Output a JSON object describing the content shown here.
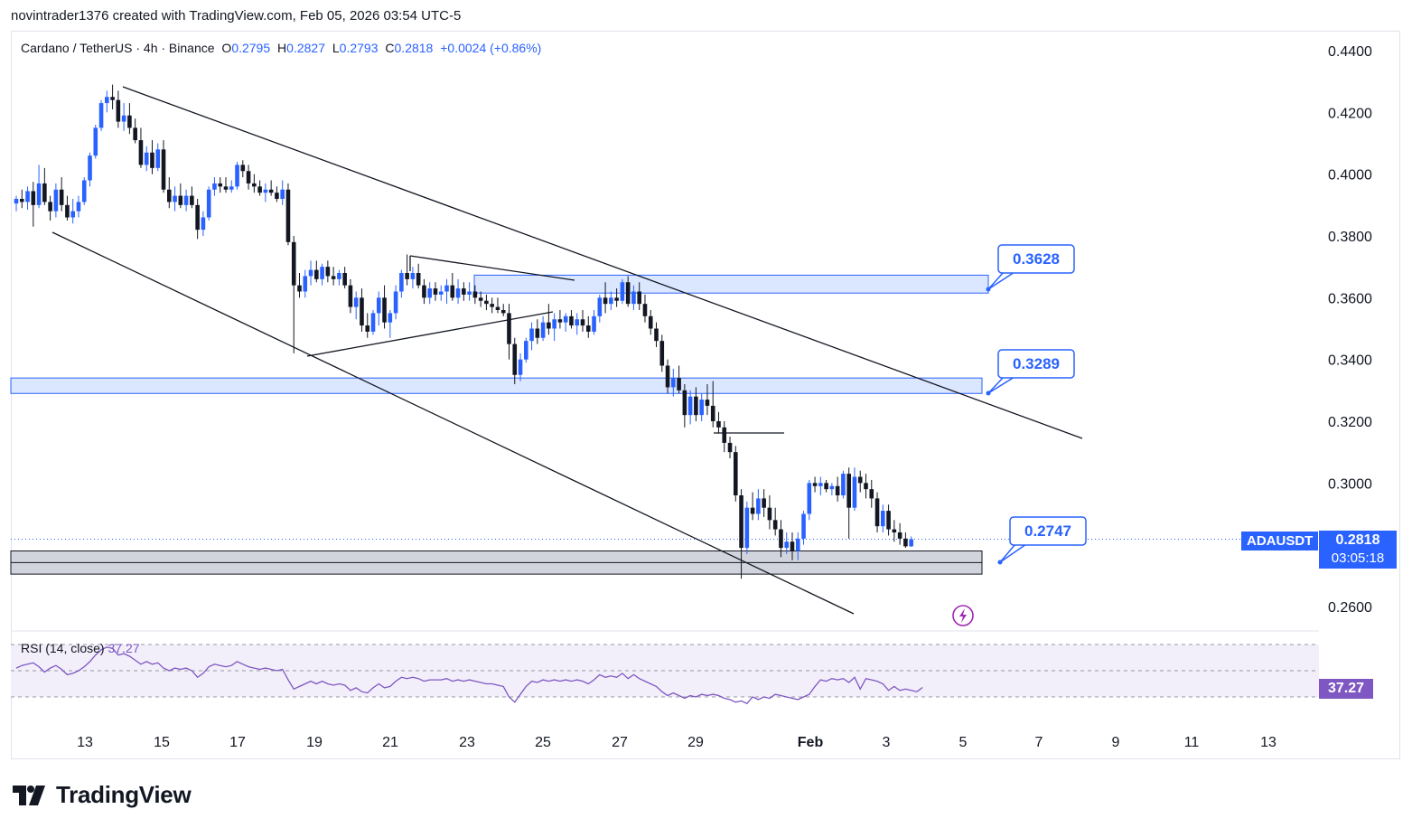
{
  "header": {
    "caption": "novintrader1376 created with TradingView.com, Feb 05, 2026 03:54 UTC-5"
  },
  "legend": {
    "symbol": "Cardano / TetherUS · 4h · Binance",
    "open_label": "O",
    "open": "0.2795",
    "high_label": "H",
    "high": "0.2827",
    "low_label": "L",
    "low": "0.2793",
    "close_label": "C",
    "close": "0.2818",
    "change": "+0.0024 (+0.86%)"
  },
  "rsi_legend": {
    "label": "RSI (14, close)",
    "value": "37.27"
  },
  "price_scale": {
    "symbol_badge": "ADAUSDT",
    "last_price": "0.2818",
    "countdown": "03:05:18",
    "rsi_badge": "37.27"
  },
  "footer": {
    "brand": "TradingView"
  },
  "colors": {
    "up": "#2962ff",
    "down": "#131722",
    "zone_blue": "#dbe6ff",
    "zone_blue_border": "#2962ff",
    "zone_grey": "#d1d4dc",
    "rsi_line": "#7e57c2",
    "rsi_band": "#f3effa",
    "callout_text": "#2962ff"
  },
  "chart_data": {
    "type": "candlestick",
    "timeframe": "4h",
    "ylim": [
      0.254,
      0.446
    ],
    "y_ticks": [
      "0.4400",
      "0.4200",
      "0.4000",
      "0.3800",
      "0.3600",
      "0.3400",
      "0.3200",
      "0.3000",
      "0.2600"
    ],
    "x_ticks": [
      "13",
      "15",
      "17",
      "19",
      "21",
      "23",
      "25",
      "27",
      "29",
      "Feb",
      "3",
      "5",
      "7",
      "9",
      "11",
      "13"
    ],
    "candles": [
      {
        "o": 0.3905,
        "h": 0.393,
        "l": 0.388,
        "c": 0.392
      },
      {
        "o": 0.392,
        "h": 0.395,
        "l": 0.389,
        "c": 0.391
      },
      {
        "o": 0.391,
        "h": 0.396,
        "l": 0.3885,
        "c": 0.3945
      },
      {
        "o": 0.3945,
        "h": 0.3975,
        "l": 0.383,
        "c": 0.39
      },
      {
        "o": 0.39,
        "h": 0.403,
        "l": 0.389,
        "c": 0.397
      },
      {
        "o": 0.397,
        "h": 0.402,
        "l": 0.39,
        "c": 0.391
      },
      {
        "o": 0.391,
        "h": 0.393,
        "l": 0.385,
        "c": 0.388
      },
      {
        "o": 0.388,
        "h": 0.397,
        "l": 0.386,
        "c": 0.395
      },
      {
        "o": 0.395,
        "h": 0.399,
        "l": 0.388,
        "c": 0.39
      },
      {
        "o": 0.39,
        "h": 0.393,
        "l": 0.385,
        "c": 0.386
      },
      {
        "o": 0.386,
        "h": 0.392,
        "l": 0.384,
        "c": 0.388
      },
      {
        "o": 0.388,
        "h": 0.393,
        "l": 0.386,
        "c": 0.391
      },
      {
        "o": 0.391,
        "h": 0.399,
        "l": 0.39,
        "c": 0.398
      },
      {
        "o": 0.398,
        "h": 0.407,
        "l": 0.396,
        "c": 0.406
      },
      {
        "o": 0.406,
        "h": 0.416,
        "l": 0.405,
        "c": 0.415
      },
      {
        "o": 0.415,
        "h": 0.424,
        "l": 0.414,
        "c": 0.423
      },
      {
        "o": 0.423,
        "h": 0.427,
        "l": 0.42,
        "c": 0.425
      },
      {
        "o": 0.425,
        "h": 0.429,
        "l": 0.421,
        "c": 0.424
      },
      {
        "o": 0.424,
        "h": 0.427,
        "l": 0.415,
        "c": 0.417
      },
      {
        "o": 0.417,
        "h": 0.423,
        "l": 0.414,
        "c": 0.419
      },
      {
        "o": 0.419,
        "h": 0.423,
        "l": 0.413,
        "c": 0.415
      },
      {
        "o": 0.415,
        "h": 0.418,
        "l": 0.41,
        "c": 0.411
      },
      {
        "o": 0.411,
        "h": 0.415,
        "l": 0.402,
        "c": 0.403
      },
      {
        "o": 0.403,
        "h": 0.409,
        "l": 0.401,
        "c": 0.407
      },
      {
        "o": 0.407,
        "h": 0.411,
        "l": 0.4,
        "c": 0.402
      },
      {
        "o": 0.402,
        "h": 0.41,
        "l": 0.401,
        "c": 0.408
      },
      {
        "o": 0.408,
        "h": 0.411,
        "l": 0.394,
        "c": 0.395
      },
      {
        "o": 0.395,
        "h": 0.399,
        "l": 0.389,
        "c": 0.391
      },
      {
        "o": 0.391,
        "h": 0.396,
        "l": 0.388,
        "c": 0.393
      },
      {
        "o": 0.393,
        "h": 0.397,
        "l": 0.389,
        "c": 0.39
      },
      {
        "o": 0.39,
        "h": 0.395,
        "l": 0.388,
        "c": 0.393
      },
      {
        "o": 0.393,
        "h": 0.396,
        "l": 0.389,
        "c": 0.39
      },
      {
        "o": 0.39,
        "h": 0.392,
        "l": 0.379,
        "c": 0.382
      },
      {
        "o": 0.382,
        "h": 0.388,
        "l": 0.38,
        "c": 0.386
      },
      {
        "o": 0.386,
        "h": 0.396,
        "l": 0.385,
        "c": 0.395
      },
      {
        "o": 0.395,
        "h": 0.399,
        "l": 0.393,
        "c": 0.397
      },
      {
        "o": 0.397,
        "h": 0.399,
        "l": 0.394,
        "c": 0.396
      },
      {
        "o": 0.396,
        "h": 0.399,
        "l": 0.394,
        "c": 0.395
      },
      {
        "o": 0.395,
        "h": 0.398,
        "l": 0.394,
        "c": 0.396
      },
      {
        "o": 0.396,
        "h": 0.404,
        "l": 0.395,
        "c": 0.403
      },
      {
        "o": 0.403,
        "h": 0.4045,
        "l": 0.399,
        "c": 0.401
      },
      {
        "o": 0.401,
        "h": 0.403,
        "l": 0.395,
        "c": 0.397
      },
      {
        "o": 0.397,
        "h": 0.4,
        "l": 0.394,
        "c": 0.396
      },
      {
        "o": 0.396,
        "h": 0.398,
        "l": 0.393,
        "c": 0.394
      },
      {
        "o": 0.394,
        "h": 0.397,
        "l": 0.391,
        "c": 0.395
      },
      {
        "o": 0.395,
        "h": 0.398,
        "l": 0.393,
        "c": 0.394
      },
      {
        "o": 0.394,
        "h": 0.396,
        "l": 0.391,
        "c": 0.392
      },
      {
        "o": 0.392,
        "h": 0.398,
        "l": 0.39,
        "c": 0.395
      },
      {
        "o": 0.395,
        "h": 0.397,
        "l": 0.377,
        "c": 0.378
      },
      {
        "o": 0.378,
        "h": 0.38,
        "l": 0.342,
        "c": 0.364
      },
      {
        "o": 0.364,
        "h": 0.368,
        "l": 0.36,
        "c": 0.362
      },
      {
        "o": 0.362,
        "h": 0.369,
        "l": 0.36,
        "c": 0.367
      },
      {
        "o": 0.367,
        "h": 0.372,
        "l": 0.364,
        "c": 0.369
      },
      {
        "o": 0.369,
        "h": 0.372,
        "l": 0.365,
        "c": 0.366
      },
      {
        "o": 0.366,
        "h": 0.371,
        "l": 0.364,
        "c": 0.37
      },
      {
        "o": 0.37,
        "h": 0.372,
        "l": 0.365,
        "c": 0.367
      },
      {
        "o": 0.367,
        "h": 0.37,
        "l": 0.364,
        "c": 0.366
      },
      {
        "o": 0.366,
        "h": 0.369,
        "l": 0.364,
        "c": 0.368
      },
      {
        "o": 0.368,
        "h": 0.37,
        "l": 0.363,
        "c": 0.364
      },
      {
        "o": 0.364,
        "h": 0.366,
        "l": 0.355,
        "c": 0.357
      },
      {
        "o": 0.357,
        "h": 0.362,
        "l": 0.353,
        "c": 0.36
      },
      {
        "o": 0.36,
        "h": 0.363,
        "l": 0.349,
        "c": 0.351
      },
      {
        "o": 0.351,
        "h": 0.355,
        "l": 0.347,
        "c": 0.349
      },
      {
        "o": 0.349,
        "h": 0.356,
        "l": 0.348,
        "c": 0.355
      },
      {
        "o": 0.355,
        "h": 0.362,
        "l": 0.351,
        "c": 0.36
      },
      {
        "o": 0.36,
        "h": 0.364,
        "l": 0.35,
        "c": 0.352
      },
      {
        "o": 0.352,
        "h": 0.356,
        "l": 0.347,
        "c": 0.355
      },
      {
        "o": 0.355,
        "h": 0.364,
        "l": 0.353,
        "c": 0.362
      },
      {
        "o": 0.362,
        "h": 0.369,
        "l": 0.36,
        "c": 0.368
      },
      {
        "o": 0.368,
        "h": 0.374,
        "l": 0.364,
        "c": 0.366
      },
      {
        "o": 0.366,
        "h": 0.37,
        "l": 0.363,
        "c": 0.368
      },
      {
        "o": 0.368,
        "h": 0.371,
        "l": 0.363,
        "c": 0.364
      },
      {
        "o": 0.364,
        "h": 0.366,
        "l": 0.358,
        "c": 0.36
      },
      {
        "o": 0.36,
        "h": 0.365,
        "l": 0.358,
        "c": 0.363
      },
      {
        "o": 0.363,
        "h": 0.365,
        "l": 0.359,
        "c": 0.361
      },
      {
        "o": 0.361,
        "h": 0.364,
        "l": 0.359,
        "c": 0.362
      },
      {
        "o": 0.362,
        "h": 0.366,
        "l": 0.358,
        "c": 0.364
      },
      {
        "o": 0.364,
        "h": 0.368,
        "l": 0.359,
        "c": 0.36
      },
      {
        "o": 0.36,
        "h": 0.366,
        "l": 0.358,
        "c": 0.363
      },
      {
        "o": 0.363,
        "h": 0.365,
        "l": 0.359,
        "c": 0.361
      },
      {
        "o": 0.361,
        "h": 0.365,
        "l": 0.359,
        "c": 0.362
      },
      {
        "o": 0.362,
        "h": 0.364,
        "l": 0.358,
        "c": 0.36
      },
      {
        "o": 0.36,
        "h": 0.362,
        "l": 0.357,
        "c": 0.359
      },
      {
        "o": 0.359,
        "h": 0.361,
        "l": 0.356,
        "c": 0.358
      },
      {
        "o": 0.358,
        "h": 0.36,
        "l": 0.355,
        "c": 0.357
      },
      {
        "o": 0.357,
        "h": 0.36,
        "l": 0.355,
        "c": 0.356
      },
      {
        "o": 0.356,
        "h": 0.358,
        "l": 0.354,
        "c": 0.355
      },
      {
        "o": 0.355,
        "h": 0.358,
        "l": 0.34,
        "c": 0.345
      },
      {
        "o": 0.345,
        "h": 0.347,
        "l": 0.332,
        "c": 0.335
      },
      {
        "o": 0.335,
        "h": 0.342,
        "l": 0.333,
        "c": 0.34
      },
      {
        "o": 0.34,
        "h": 0.347,
        "l": 0.339,
        "c": 0.346
      },
      {
        "o": 0.346,
        "h": 0.352,
        "l": 0.343,
        "c": 0.35
      },
      {
        "o": 0.35,
        "h": 0.353,
        "l": 0.345,
        "c": 0.347
      },
      {
        "o": 0.347,
        "h": 0.354,
        "l": 0.346,
        "c": 0.352
      },
      {
        "o": 0.352,
        "h": 0.358,
        "l": 0.348,
        "c": 0.35
      },
      {
        "o": 0.35,
        "h": 0.355,
        "l": 0.346,
        "c": 0.353
      },
      {
        "o": 0.353,
        "h": 0.356,
        "l": 0.35,
        "c": 0.352
      },
      {
        "o": 0.352,
        "h": 0.355,
        "l": 0.349,
        "c": 0.354
      },
      {
        "o": 0.354,
        "h": 0.356,
        "l": 0.35,
        "c": 0.351
      },
      {
        "o": 0.351,
        "h": 0.355,
        "l": 0.348,
        "c": 0.353
      },
      {
        "o": 0.353,
        "h": 0.356,
        "l": 0.349,
        "c": 0.351
      },
      {
        "o": 0.351,
        "h": 0.354,
        "l": 0.347,
        "c": 0.349
      },
      {
        "o": 0.349,
        "h": 0.356,
        "l": 0.348,
        "c": 0.354
      },
      {
        "o": 0.354,
        "h": 0.361,
        "l": 0.352,
        "c": 0.36
      },
      {
        "o": 0.36,
        "h": 0.365,
        "l": 0.355,
        "c": 0.358
      },
      {
        "o": 0.358,
        "h": 0.362,
        "l": 0.356,
        "c": 0.36
      },
      {
        "o": 0.36,
        "h": 0.363,
        "l": 0.357,
        "c": 0.359
      },
      {
        "o": 0.359,
        "h": 0.366,
        "l": 0.358,
        "c": 0.365
      },
      {
        "o": 0.365,
        "h": 0.367,
        "l": 0.357,
        "c": 0.358
      },
      {
        "o": 0.358,
        "h": 0.364,
        "l": 0.356,
        "c": 0.362
      },
      {
        "o": 0.362,
        "h": 0.365,
        "l": 0.356,
        "c": 0.358
      },
      {
        "o": 0.358,
        "h": 0.361,
        "l": 0.352,
        "c": 0.354
      },
      {
        "o": 0.354,
        "h": 0.356,
        "l": 0.348,
        "c": 0.35
      },
      {
        "o": 0.35,
        "h": 0.352,
        "l": 0.344,
        "c": 0.346
      },
      {
        "o": 0.346,
        "h": 0.348,
        "l": 0.336,
        "c": 0.338
      },
      {
        "o": 0.338,
        "h": 0.34,
        "l": 0.329,
        "c": 0.331
      },
      {
        "o": 0.331,
        "h": 0.337,
        "l": 0.328,
        "c": 0.334
      },
      {
        "o": 0.334,
        "h": 0.338,
        "l": 0.329,
        "c": 0.33
      },
      {
        "o": 0.33,
        "h": 0.332,
        "l": 0.318,
        "c": 0.322
      },
      {
        "o": 0.322,
        "h": 0.33,
        "l": 0.319,
        "c": 0.328
      },
      {
        "o": 0.328,
        "h": 0.331,
        "l": 0.32,
        "c": 0.322
      },
      {
        "o": 0.322,
        "h": 0.329,
        "l": 0.32,
        "c": 0.327
      },
      {
        "o": 0.327,
        "h": 0.332,
        "l": 0.322,
        "c": 0.325
      },
      {
        "o": 0.325,
        "h": 0.333,
        "l": 0.318,
        "c": 0.32
      },
      {
        "o": 0.32,
        "h": 0.323,
        "l": 0.316,
        "c": 0.318
      },
      {
        "o": 0.318,
        "h": 0.32,
        "l": 0.31,
        "c": 0.313
      },
      {
        "o": 0.313,
        "h": 0.315,
        "l": 0.308,
        "c": 0.31
      },
      {
        "o": 0.31,
        "h": 0.312,
        "l": 0.294,
        "c": 0.296
      },
      {
        "o": 0.296,
        "h": 0.298,
        "l": 0.269,
        "c": 0.279
      },
      {
        "o": 0.279,
        "h": 0.294,
        "l": 0.277,
        "c": 0.292
      },
      {
        "o": 0.292,
        "h": 0.297,
        "l": 0.288,
        "c": 0.29
      },
      {
        "o": 0.29,
        "h": 0.298,
        "l": 0.288,
        "c": 0.295
      },
      {
        "o": 0.295,
        "h": 0.298,
        "l": 0.289,
        "c": 0.292
      },
      {
        "o": 0.292,
        "h": 0.296,
        "l": 0.285,
        "c": 0.288
      },
      {
        "o": 0.288,
        "h": 0.292,
        "l": 0.283,
        "c": 0.285
      },
      {
        "o": 0.285,
        "h": 0.288,
        "l": 0.276,
        "c": 0.279
      },
      {
        "o": 0.279,
        "h": 0.284,
        "l": 0.277,
        "c": 0.281
      },
      {
        "o": 0.281,
        "h": 0.284,
        "l": 0.275,
        "c": 0.278
      },
      {
        "o": 0.278,
        "h": 0.284,
        "l": 0.275,
        "c": 0.282
      },
      {
        "o": 0.282,
        "h": 0.291,
        "l": 0.28,
        "c": 0.29
      },
      {
        "o": 0.29,
        "h": 0.301,
        "l": 0.288,
        "c": 0.3
      },
      {
        "o": 0.3,
        "h": 0.302,
        "l": 0.297,
        "c": 0.299
      },
      {
        "o": 0.299,
        "h": 0.302,
        "l": 0.296,
        "c": 0.3
      },
      {
        "o": 0.3,
        "h": 0.301,
        "l": 0.297,
        "c": 0.298
      },
      {
        "o": 0.298,
        "h": 0.3,
        "l": 0.296,
        "c": 0.299
      },
      {
        "o": 0.299,
        "h": 0.302,
        "l": 0.294,
        "c": 0.296
      },
      {
        "o": 0.296,
        "h": 0.304,
        "l": 0.295,
        "c": 0.303
      },
      {
        "o": 0.303,
        "h": 0.305,
        "l": 0.282,
        "c": 0.292
      },
      {
        "o": 0.292,
        "h": 0.305,
        "l": 0.291,
        "c": 0.302
      },
      {
        "o": 0.302,
        "h": 0.304,
        "l": 0.297,
        "c": 0.3
      },
      {
        "o": 0.3,
        "h": 0.303,
        "l": 0.295,
        "c": 0.298
      },
      {
        "o": 0.298,
        "h": 0.301,
        "l": 0.292,
        "c": 0.295
      },
      {
        "o": 0.295,
        "h": 0.297,
        "l": 0.284,
        "c": 0.286
      },
      {
        "o": 0.286,
        "h": 0.293,
        "l": 0.284,
        "c": 0.291
      },
      {
        "o": 0.291,
        "h": 0.293,
        "l": 0.283,
        "c": 0.285
      },
      {
        "o": 0.285,
        "h": 0.288,
        "l": 0.281,
        "c": 0.284
      },
      {
        "o": 0.284,
        "h": 0.287,
        "l": 0.28,
        "c": 0.282
      },
      {
        "o": 0.282,
        "h": 0.284,
        "l": 0.279,
        "c": 0.2795
      },
      {
        "o": 0.2795,
        "h": 0.2827,
        "l": 0.2793,
        "c": 0.2818
      }
    ],
    "rsi": {
      "name": "RSI (14, close)",
      "last": 37.27,
      "bands": [
        70,
        50,
        30
      ],
      "values": [
        52,
        54,
        55,
        56,
        53,
        49,
        52,
        54,
        51,
        47,
        48,
        50,
        53,
        57,
        62,
        66,
        68,
        67,
        62,
        63,
        61,
        58,
        55,
        57,
        55,
        56,
        52,
        50,
        52,
        51,
        52,
        50,
        45,
        48,
        53,
        55,
        54,
        53,
        54,
        57,
        55,
        53,
        52,
        51,
        52,
        51,
        50,
        51,
        43,
        36,
        38,
        40,
        42,
        40,
        42,
        40,
        39,
        40,
        39,
        35,
        37,
        34,
        33,
        37,
        40,
        37,
        38,
        42,
        45,
        44,
        45,
        44,
        42,
        43,
        43,
        43,
        44,
        42,
        43,
        42,
        43,
        42,
        41,
        40,
        40,
        39,
        38,
        30,
        26,
        32,
        38,
        42,
        41,
        43,
        42,
        43,
        42,
        43,
        42,
        43,
        42,
        40,
        43,
        47,
        45,
        46,
        45,
        48,
        44,
        47,
        44,
        42,
        40,
        38,
        34,
        31,
        33,
        31,
        29,
        31,
        30,
        32,
        31,
        32,
        31,
        29,
        28,
        26,
        27,
        25,
        30,
        28,
        30,
        29,
        32,
        31,
        30,
        29,
        28,
        30,
        32,
        38,
        43,
        42,
        44,
        43,
        44,
        41,
        45,
        36,
        44,
        43,
        42,
        40,
        35,
        38,
        35,
        36,
        35,
        34,
        37.27
      ]
    },
    "annotations": {
      "callouts": [
        "0.3628",
        "0.3289",
        "0.2747"
      ],
      "zones": [
        {
          "label": "supply-zone-0.3628",
          "low": 0.3615,
          "high": 0.3673
        },
        {
          "label": "resistance-zone-0.3289",
          "low": 0.329,
          "high": 0.334
        },
        {
          "label": "support-zone-0.2747",
          "low": 0.2705,
          "high": 0.278
        }
      ]
    }
  }
}
